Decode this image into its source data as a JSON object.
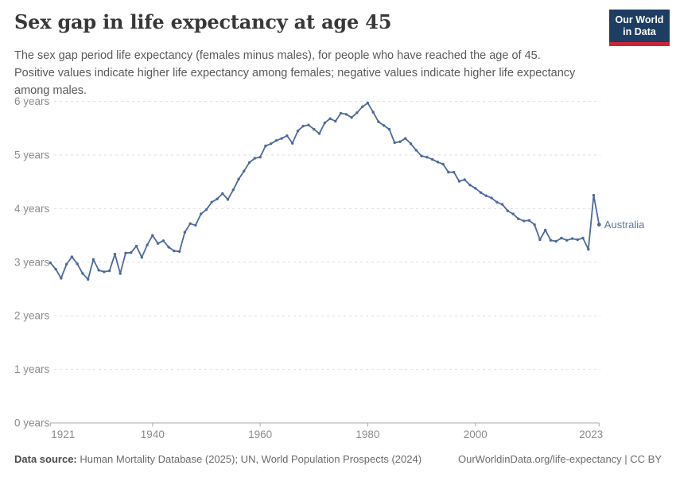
{
  "header": {
    "title": "Sex gap in life expectancy at age 45",
    "logo": {
      "line1": "Our World",
      "line2": "in Data",
      "bg_color": "#1d3d63",
      "accent_color": "#cf2437"
    }
  },
  "subtitle": "The sex gap period life expectancy (females minus males), for people who have reached the age of 45. Positive values indicate higher life expectancy among females; negative values indicate higher life expectancy among males.",
  "chart_data": {
    "type": "line",
    "title": "Sex gap in life expectancy at age 45",
    "xlabel": "",
    "ylabel": "",
    "xlim": [
      1921,
      2023
    ],
    "ylim": [
      0,
      6
    ],
    "grid": "dashed-horizontal",
    "x_ticks": [
      1921,
      1940,
      1960,
      1980,
      2000,
      2023
    ],
    "y_ticks": [
      0,
      1,
      2,
      3,
      4,
      5,
      6
    ],
    "y_tick_suffix": " years",
    "legend_position": "end-of-line-label",
    "line_color": "#4c6a9c",
    "series": [
      {
        "name": "Australia",
        "start_year": 1921,
        "end_year": 2023,
        "values": [
          2.99,
          2.87,
          2.7,
          2.96,
          3.1,
          2.97,
          2.79,
          2.68,
          3.05,
          2.85,
          2.82,
          2.84,
          3.15,
          2.79,
          3.17,
          3.18,
          3.3,
          3.09,
          3.32,
          3.5,
          3.35,
          3.4,
          3.28,
          3.21,
          3.2,
          3.56,
          3.72,
          3.69,
          3.9,
          3.98,
          4.12,
          4.18,
          4.28,
          4.17,
          4.35,
          4.55,
          4.7,
          4.86,
          4.94,
          4.96,
          5.17,
          5.21,
          5.27,
          5.31,
          5.36,
          5.22,
          5.45,
          5.54,
          5.56,
          5.48,
          5.4,
          5.6,
          5.68,
          5.63,
          5.78,
          5.76,
          5.7,
          5.79,
          5.9,
          5.97,
          5.8,
          5.62,
          5.55,
          5.48,
          5.23,
          5.25,
          5.31,
          5.21,
          5.09,
          4.98,
          4.96,
          4.92,
          4.87,
          4.83,
          4.68,
          4.68,
          4.51,
          4.54,
          4.44,
          4.38,
          4.3,
          4.24,
          4.2,
          4.12,
          4.08,
          3.96,
          3.9,
          3.81,
          3.77,
          3.78,
          3.7,
          3.42,
          3.6,
          3.41,
          3.39,
          3.45,
          3.41,
          3.44,
          3.42,
          3.45,
          3.24,
          4.25,
          3.7
        ]
      }
    ]
  },
  "footer": {
    "source_label": "Data source:",
    "source_text": " Human Mortality Database (2025); UN, World Population Prospects (2024)",
    "attribution": "OurWorldinData.org/life-expectancy | CC BY"
  }
}
